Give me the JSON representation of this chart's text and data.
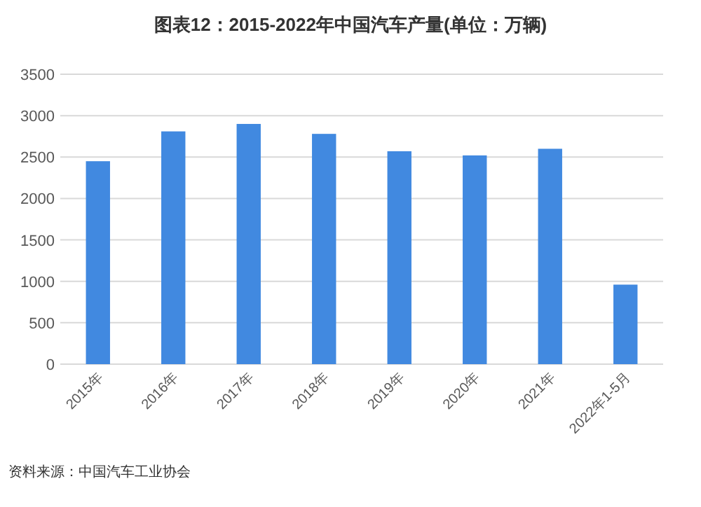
{
  "chart_data": {
    "type": "bar",
    "title": "图表12：2015-2022年中国汽车产量(单位：万辆)",
    "categories": [
      "2015年",
      "2016年",
      "2017年",
      "2018年",
      "2019年",
      "2020年",
      "2021年",
      "2022年1-5月"
    ],
    "values": [
      2450,
      2810,
      2900,
      2780,
      2570,
      2520,
      2600,
      960
    ],
    "color": "#4189e0",
    "ylim": [
      0,
      3500
    ],
    "yticks": [
      0,
      500,
      1000,
      1500,
      2000,
      2500,
      3000,
      3500
    ],
    "grid": "y",
    "annotations": [
      "资料来源：中国汽车工业协会"
    ]
  }
}
